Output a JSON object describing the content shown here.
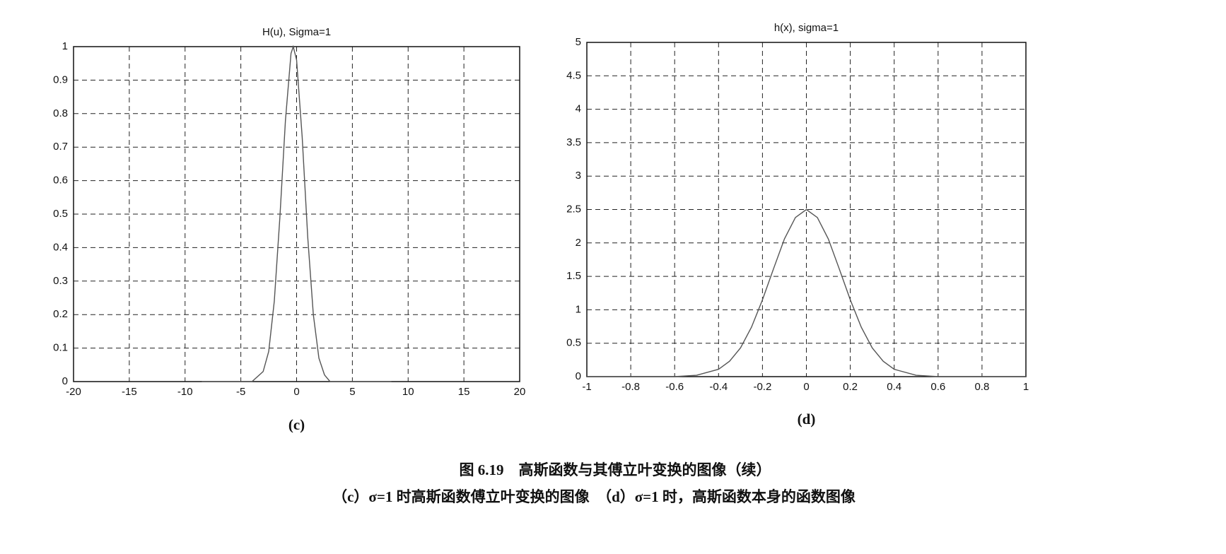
{
  "chart_data": [
    {
      "type": "line",
      "title": "H(u), Sigma=1",
      "x": [
        -8.5,
        -4,
        -3,
        -2.5,
        -2,
        -1.5,
        -1,
        -0.5,
        -0.3,
        0,
        0.5,
        1,
        1.5,
        2,
        2.5,
        3,
        4,
        8.5
      ],
      "values": [
        0,
        0,
        0.03,
        0.09,
        0.24,
        0.49,
        0.78,
        0.98,
        1,
        0.96,
        0.73,
        0.43,
        0.2,
        0.07,
        0.02,
        0,
        0,
        0
      ],
      "color": "#555555",
      "xlim": [
        -20,
        20
      ],
      "ylim": [
        0,
        1
      ],
      "xticks": [
        -20,
        -15,
        -10,
        -5,
        0,
        5,
        10,
        15,
        20
      ],
      "yticks": [
        0,
        0.1,
        0.2,
        0.3,
        0.4,
        0.5,
        0.6,
        0.7,
        0.8,
        0.9,
        1
      ],
      "grid": true,
      "caption": "(c)"
    },
    {
      "type": "line",
      "title": "h(x), sigma=1",
      "x": [
        -1,
        -0.6,
        -0.5,
        -0.4,
        -0.35,
        -0.3,
        -0.25,
        -0.2,
        -0.15,
        -0.1,
        -0.05,
        0,
        0.05,
        0.1,
        0.15,
        0.2,
        0.25,
        0.3,
        0.35,
        0.4,
        0.5,
        0.6,
        1
      ],
      "values": [
        0,
        0,
        0.02,
        0.11,
        0.23,
        0.43,
        0.74,
        1.15,
        1.61,
        2.06,
        2.38,
        2.5,
        2.38,
        2.06,
        1.61,
        1.15,
        0.74,
        0.43,
        0.23,
        0.11,
        0.02,
        0,
        0
      ],
      "color": "#555555",
      "xlim": [
        -1,
        1
      ],
      "ylim": [
        0,
        5
      ],
      "xticks": [
        -1,
        -0.8,
        -0.6,
        -0.4,
        -0.2,
        0,
        0.2,
        0.4,
        0.6,
        0.8,
        1
      ],
      "yticks": [
        0,
        0.5,
        1,
        1.5,
        2,
        2.5,
        3,
        3.5,
        4,
        4.5,
        5
      ],
      "grid": true,
      "caption": "(d)"
    }
  ],
  "figure_caption": {
    "line1": "图 6.19　高斯函数与其傅立叶变换的图像（续）",
    "line2": "（c）σ=1 时高斯函数傅立叶变换的图像　（d）σ=1 时，高斯函数本身的函数图像"
  }
}
